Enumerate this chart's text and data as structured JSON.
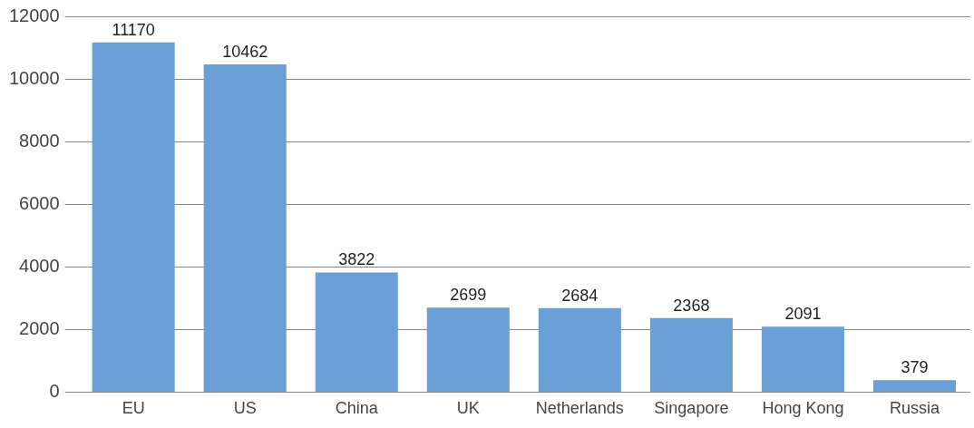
{
  "chart_data": {
    "type": "bar",
    "categories": [
      "EU",
      "US",
      "China",
      "UK",
      "Netherlands",
      "Singapore",
      "Hong Kong",
      "Russia"
    ],
    "values": [
      11170,
      10462,
      3822,
      2699,
      2684,
      2368,
      2091,
      379
    ],
    "color": "#6aa0d6",
    "ylim": [
      0,
      12000
    ],
    "yticks": [
      0,
      2000,
      4000,
      6000,
      8000,
      10000,
      12000
    ],
    "grid": "y",
    "data_labels": true,
    "legend": false
  }
}
